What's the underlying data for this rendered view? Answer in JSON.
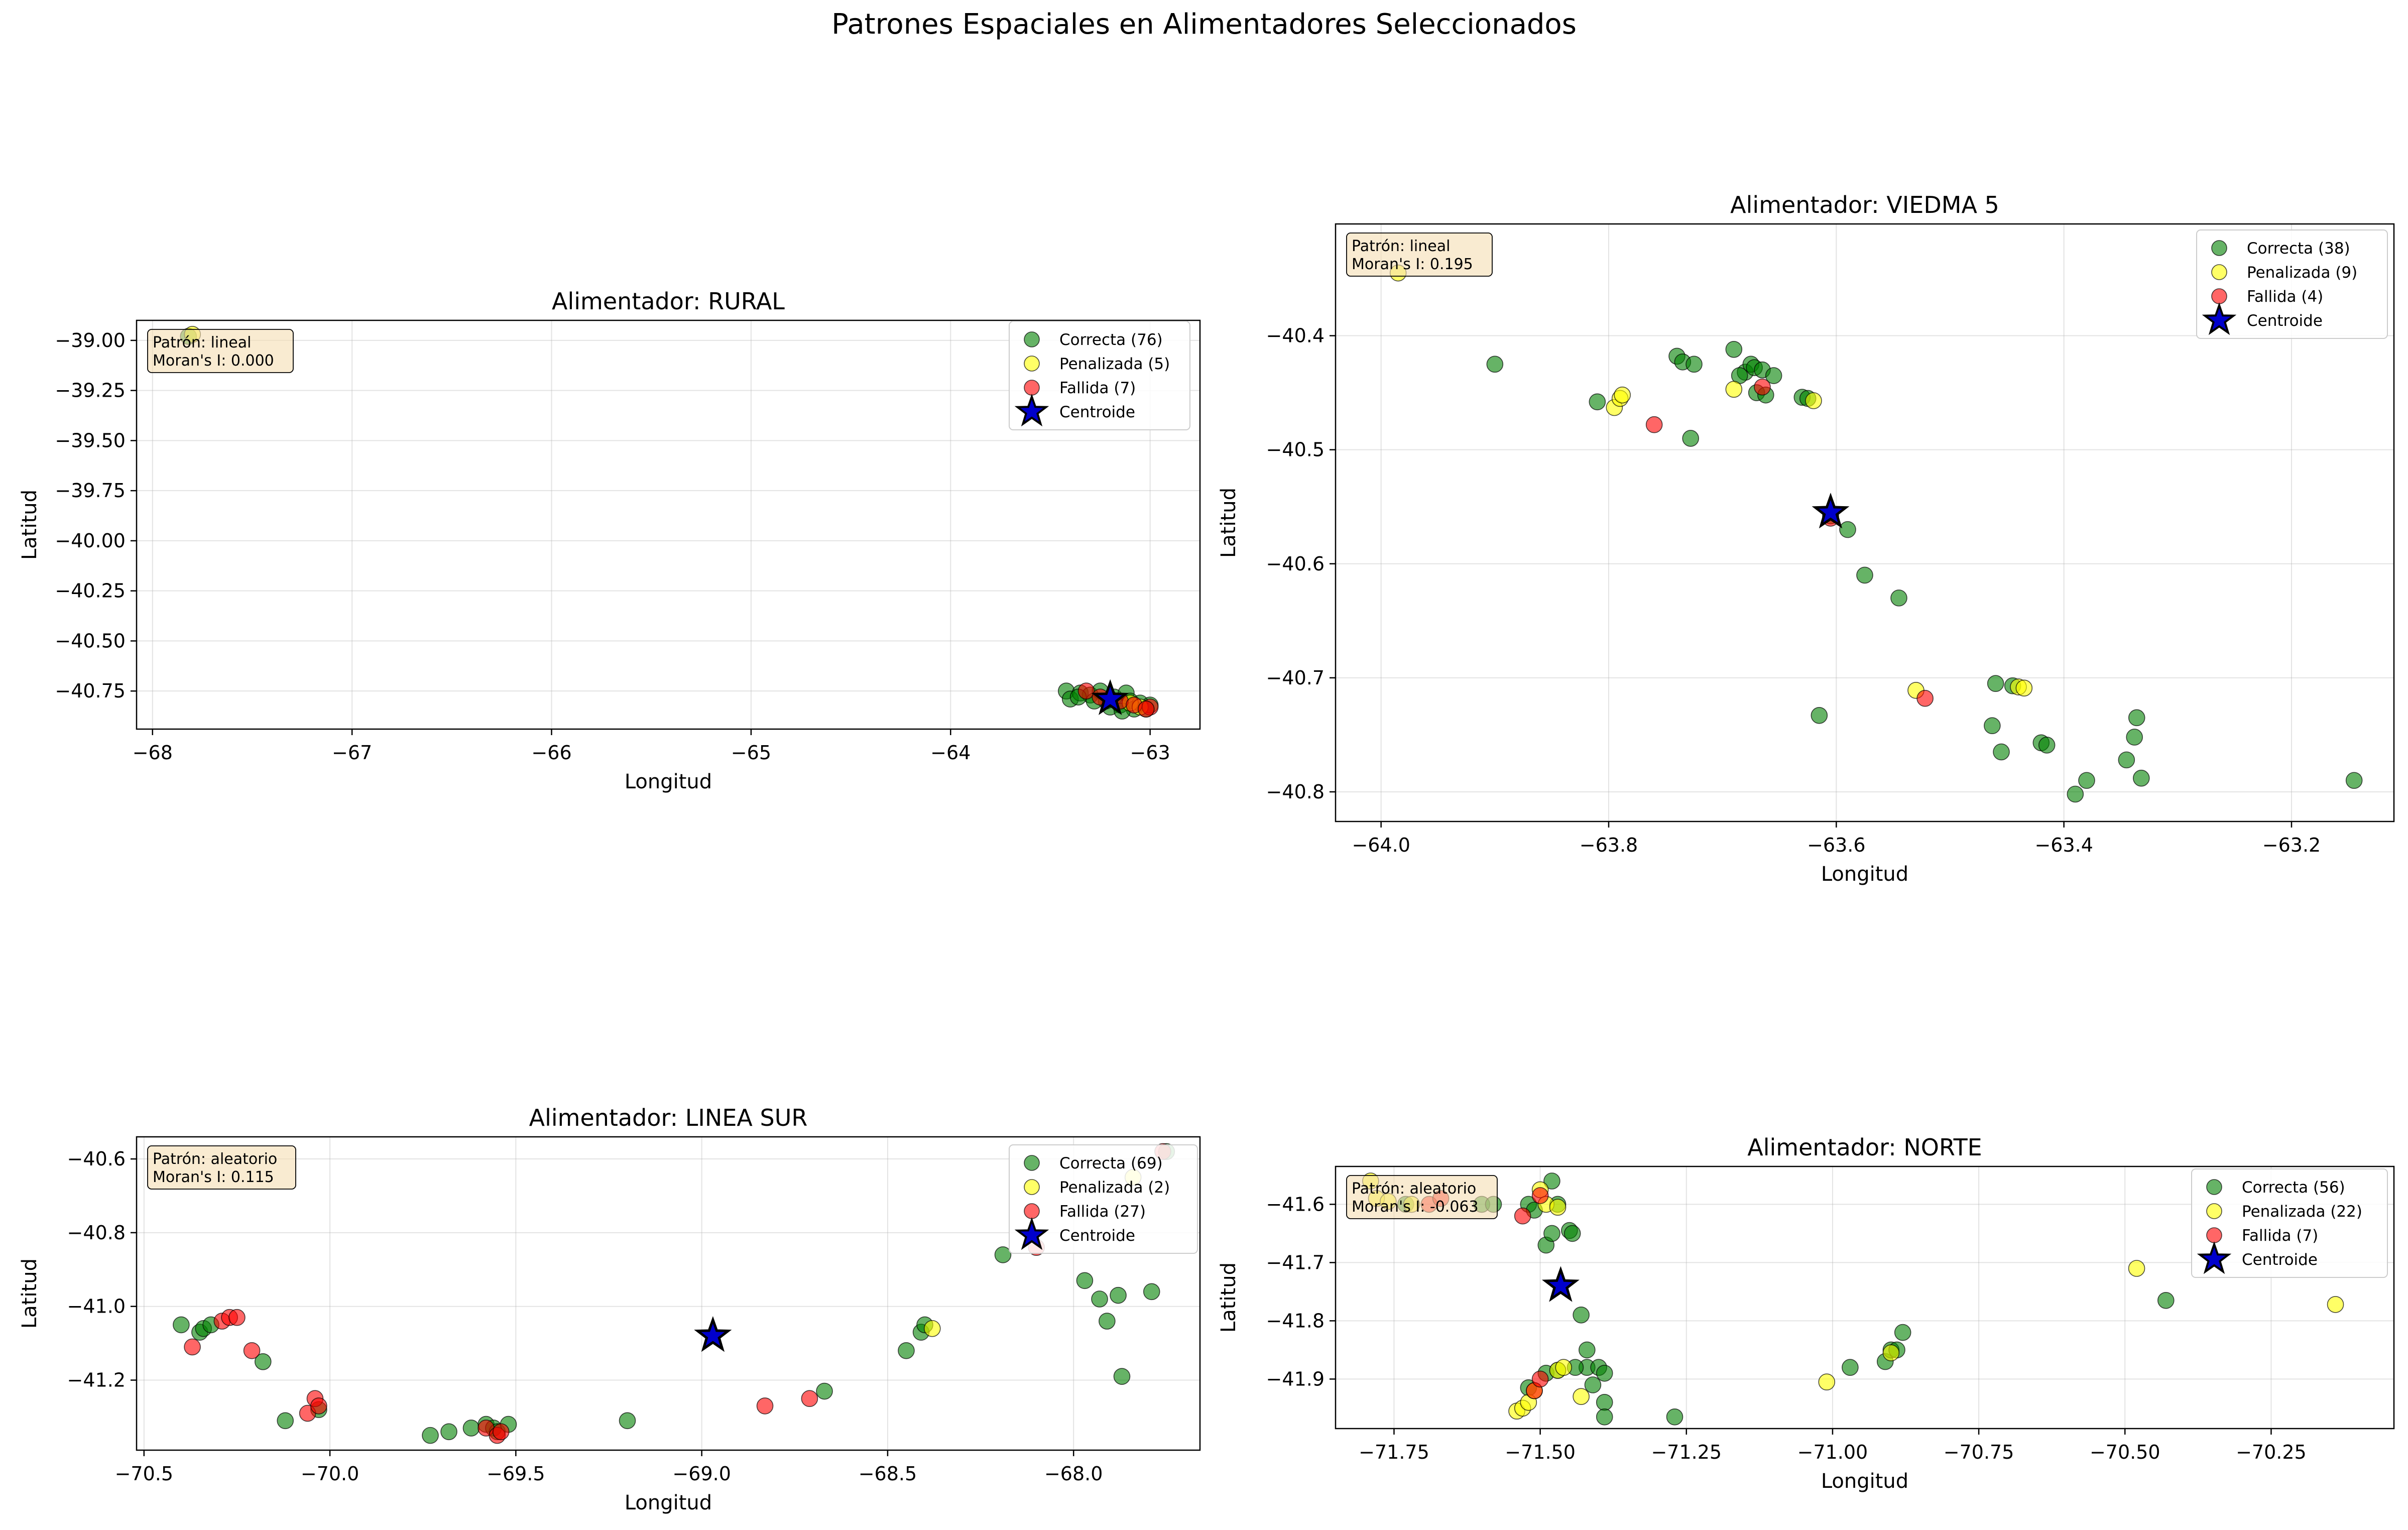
{
  "suptitle": "Patrones Espaciales en Alimentadores Seleccionados",
  "colors": {
    "correcta": "#008000",
    "penalizada": "#ffff00",
    "fallida": "#ff0000",
    "centroide": "#0000cc"
  },
  "chart_data": [
    {
      "type": "scatter",
      "title": "Alimentador: RURAL",
      "xlabel": "Longitud",
      "ylabel": "Latitud",
      "xlim": [
        -68.08,
        -62.75
      ],
      "ylim": [
        -40.94,
        -38.9
      ],
      "xticks": [
        -68,
        -67,
        -66,
        -65,
        -64,
        -63
      ],
      "yticks": [
        -39.0,
        -39.25,
        -39.5,
        -39.75,
        -40.0,
        -40.25,
        -40.5,
        -40.75
      ],
      "xtick_labels": [
        "−68",
        "−67",
        "−66",
        "−65",
        "−64",
        "−63"
      ],
      "ytick_labels": [
        "−39.00",
        "−39.25",
        "−39.50",
        "−39.75",
        "−40.00",
        "−40.25",
        "−40.50",
        "−40.75"
      ],
      "grid": true,
      "legend_position": "top-right",
      "annotation": {
        "patron": "Patrón: lineal",
        "moran": "Moran's I: 0.000"
      },
      "series": [
        {
          "name": "Correcta (76)",
          "color": "#008000",
          "points": [
            [
              -67.82,
              -38.98
            ],
            [
              -63.42,
              -40.75
            ],
            [
              -63.4,
              -40.79
            ],
            [
              -63.35,
              -40.76
            ],
            [
              -63.3,
              -40.77
            ],
            [
              -63.25,
              -40.75
            ],
            [
              -63.22,
              -40.8
            ],
            [
              -63.18,
              -40.78
            ],
            [
              -63.15,
              -40.82
            ],
            [
              -63.12,
              -40.76
            ],
            [
              -63.1,
              -40.8
            ],
            [
              -63.08,
              -40.84
            ],
            [
              -63.05,
              -40.81
            ],
            [
              -63.02,
              -40.84
            ],
            [
              -63.2,
              -40.83
            ],
            [
              -63.28,
              -40.8
            ],
            [
              -63.36,
              -40.78
            ],
            [
              -63.0,
              -40.82
            ],
            [
              -63.14,
              -40.85
            ]
          ]
        },
        {
          "name": "Penalizada (5)",
          "color": "#ffff00",
          "points": [
            [
              -67.8,
              -38.97
            ],
            [
              -63.2,
              -40.79
            ],
            [
              -63.1,
              -40.81
            ],
            [
              -63.05,
              -40.83
            ]
          ]
        },
        {
          "name": "Fallida (7)",
          "color": "#ff0000",
          "points": [
            [
              -63.32,
              -40.75
            ],
            [
              -63.25,
              -40.78
            ],
            [
              -63.15,
              -40.8
            ],
            [
              -63.08,
              -40.82
            ],
            [
              -63.0,
              -40.83
            ],
            [
              -63.02,
              -40.84
            ]
          ]
        },
        {
          "name": "Centroide",
          "color": "#0000cc",
          "marker": "star",
          "points": [
            [
              -63.2,
              -40.79
            ]
          ]
        }
      ]
    },
    {
      "type": "scatter",
      "title": "Alimentador: VIEDMA 5",
      "xlabel": "Longitud",
      "ylabel": "Latitud",
      "xlim": [
        -64.04,
        -63.11
      ],
      "ylim": [
        -40.826,
        -40.302
      ],
      "xticks": [
        -64.0,
        -63.8,
        -63.6,
        -63.4,
        -63.2
      ],
      "yticks": [
        -40.4,
        -40.5,
        -40.6,
        -40.7,
        -40.8
      ],
      "xtick_labels": [
        "−64.0",
        "−63.8",
        "−63.6",
        "−63.4",
        "−63.2"
      ],
      "ytick_labels": [
        "−40.4",
        "−40.5",
        "−40.6",
        "−40.7",
        "−40.8"
      ],
      "grid": true,
      "legend_position": "top-right",
      "annotation": {
        "patron": "Patrón: lineal",
        "moran": "Moran's I: 0.195"
      },
      "series": [
        {
          "name": "Correcta (38)",
          "color": "#008000",
          "points": [
            [
              -63.9,
              -40.425
            ],
            [
              -63.81,
              -40.458
            ],
            [
              -63.74,
              -40.418
            ],
            [
              -63.735,
              -40.423
            ],
            [
              -63.725,
              -40.425
            ],
            [
              -63.728,
              -40.49
            ],
            [
              -63.69,
              -40.412
            ],
            [
              -63.68,
              -40.432
            ],
            [
              -63.675,
              -40.425
            ],
            [
              -63.672,
              -40.428
            ],
            [
              -63.67,
              -40.45
            ],
            [
              -63.665,
              -40.43
            ],
            [
              -63.662,
              -40.452
            ],
            [
              -63.655,
              -40.435
            ],
            [
              -63.63,
              -40.454
            ],
            [
              -63.625,
              -40.455
            ],
            [
              -63.605,
              -40.558
            ],
            [
              -63.59,
              -40.57
            ],
            [
              -63.575,
              -40.61
            ],
            [
              -63.545,
              -40.63
            ],
            [
              -63.615,
              -40.733
            ],
            [
              -63.46,
              -40.705
            ],
            [
              -63.463,
              -40.742
            ],
            [
              -63.455,
              -40.765
            ],
            [
              -63.445,
              -40.707
            ],
            [
              -63.42,
              -40.757
            ],
            [
              -63.415,
              -40.759
            ],
            [
              -63.39,
              -40.802
            ],
            [
              -63.38,
              -40.79
            ],
            [
              -63.345,
              -40.772
            ],
            [
              -63.338,
              -40.752
            ],
            [
              -63.336,
              -40.735
            ],
            [
              -63.332,
              -40.788
            ],
            [
              -63.145,
              -40.79
            ],
            [
              -63.685,
              -40.435
            ]
          ]
        },
        {
          "name": "Penalizada (9)",
          "color": "#ffff00",
          "points": [
            [
              -63.985,
              -40.345
            ],
            [
              -63.795,
              -40.463
            ],
            [
              -63.79,
              -40.455
            ],
            [
              -63.788,
              -40.452
            ],
            [
              -63.69,
              -40.447
            ],
            [
              -63.62,
              -40.457
            ],
            [
              -63.53,
              -40.711
            ],
            [
              -63.44,
              -40.708
            ],
            [
              -63.435,
              -40.709
            ]
          ]
        },
        {
          "name": "Fallida (4)",
          "color": "#ff0000",
          "points": [
            [
              -63.76,
              -40.478
            ],
            [
              -63.665,
              -40.445
            ],
            [
              -63.522,
              -40.718
            ],
            [
              -63.605,
              -40.56
            ]
          ]
        },
        {
          "name": "Centroide",
          "color": "#0000cc",
          "marker": "star",
          "points": [
            [
              -63.605,
              -40.555
            ]
          ]
        }
      ]
    },
    {
      "type": "scatter",
      "title": "Alimentador: LINEA SUR",
      "xlabel": "Longitud",
      "ylabel": "Latitud",
      "xlim": [
        -70.52,
        -67.66
      ],
      "ylim": [
        -41.39,
        -40.54
      ],
      "xticks": [
        -70.5,
        -70.0,
        -69.5,
        -69.0,
        -68.5,
        -68.0
      ],
      "yticks": [
        -40.6,
        -40.8,
        -41.0,
        -41.2
      ],
      "xtick_labels": [
        "−70.5",
        "−70.0",
        "−69.5",
        "−69.0",
        "−68.5",
        "−68.0"
      ],
      "ytick_labels": [
        "−40.6",
        "−40.8",
        "−41.0",
        "−41.2"
      ],
      "grid": true,
      "legend_position": "top-right",
      "annotation": {
        "patron": "Patrón: aleatorio",
        "moran": "Moran's I: 0.115"
      },
      "series": [
        {
          "name": "Correcta (69)",
          "color": "#008000",
          "points": [
            [
              -70.4,
              -41.05
            ],
            [
              -70.35,
              -41.07
            ],
            [
              -70.34,
              -41.06
            ],
            [
              -70.32,
              -41.05
            ],
            [
              -70.18,
              -41.15
            ],
            [
              -70.12,
              -41.31
            ],
            [
              -70.03,
              -41.28
            ],
            [
              -69.73,
              -41.35
            ],
            [
              -69.68,
              -41.34
            ],
            [
              -69.62,
              -41.33
            ],
            [
              -69.58,
              -41.32
            ],
            [
              -69.56,
              -41.33
            ],
            [
              -69.55,
              -41.34
            ],
            [
              -69.52,
              -41.32
            ],
            [
              -69.2,
              -41.31
            ],
            [
              -68.67,
              -41.23
            ],
            [
              -68.45,
              -41.12
            ],
            [
              -68.41,
              -41.07
            ],
            [
              -68.4,
              -41.05
            ],
            [
              -68.19,
              -40.86
            ],
            [
              -67.97,
              -40.93
            ],
            [
              -67.93,
              -40.98
            ],
            [
              -67.91,
              -41.04
            ],
            [
              -67.88,
              -40.97
            ],
            [
              -67.87,
              -41.19
            ],
            [
              -67.79,
              -40.96
            ],
            [
              -67.75,
              -40.58
            ]
          ]
        },
        {
          "name": "Penalizada (2)",
          "color": "#ffff00",
          "points": [
            [
              -68.38,
              -41.06
            ],
            [
              -67.84,
              -40.65
            ]
          ]
        },
        {
          "name": "Fallida (27)",
          "color": "#ff0000",
          "points": [
            [
              -70.37,
              -41.11
            ],
            [
              -70.29,
              -41.04
            ],
            [
              -70.27,
              -41.03
            ],
            [
              -70.25,
              -41.03
            ],
            [
              -70.21,
              -41.12
            ],
            [
              -70.06,
              -41.29
            ],
            [
              -70.04,
              -41.25
            ],
            [
              -70.03,
              -41.27
            ],
            [
              -69.58,
              -41.33
            ],
            [
              -69.55,
              -41.35
            ],
            [
              -69.54,
              -41.34
            ],
            [
              -68.83,
              -41.27
            ],
            [
              -68.71,
              -41.25
            ],
            [
              -68.1,
              -40.84
            ],
            [
              -67.76,
              -40.58
            ]
          ]
        },
        {
          "name": "Centroide",
          "color": "#0000cc",
          "marker": "star",
          "points": [
            [
              -68.97,
              -41.08
            ]
          ]
        }
      ]
    },
    {
      "type": "scatter",
      "title": "Alimentador: NORTE",
      "xlabel": "Longitud",
      "ylabel": "Latitud",
      "xlim": [
        -71.85,
        -70.04
      ],
      "ylim": [
        -41.985,
        -41.535
      ],
      "xticks": [
        -71.75,
        -71.5,
        -71.25,
        -71.0,
        -70.75,
        -70.5,
        -70.25
      ],
      "yticks": [
        -41.6,
        -41.7,
        -41.8,
        -41.9
      ],
      "xtick_labels": [
        "−71.75",
        "−71.50",
        "−71.25",
        "−71.00",
        "−70.75",
        "−70.50",
        "−70.25"
      ],
      "ytick_labels": [
        "−41.6",
        "−41.7",
        "−41.8",
        "−41.9"
      ],
      "grid": true,
      "legend_position": "top-right",
      "annotation": {
        "patron": "Patrón: aleatorio",
        "moran": "Moran's I: -0.063"
      },
      "series": [
        {
          "name": "Correcta (56)",
          "color": "#008000",
          "points": [
            [
              -71.73,
              -41.6
            ],
            [
              -71.6,
              -41.6
            ],
            [
              -71.58,
              -41.6
            ],
            [
              -71.52,
              -41.6
            ],
            [
              -71.51,
              -41.61
            ],
            [
              -71.49,
              -41.67
            ],
            [
              -71.48,
              -41.65
            ],
            [
              -71.48,
              -41.56
            ],
            [
              -71.47,
              -41.6
            ],
            [
              -71.45,
              -41.645
            ],
            [
              -71.445,
              -41.65
            ],
            [
              -71.43,
              -41.79
            ],
            [
              -71.42,
              -41.85
            ],
            [
              -71.42,
              -41.88
            ],
            [
              -71.41,
              -41.91
            ],
            [
              -71.4,
              -41.88
            ],
            [
              -71.39,
              -41.89
            ],
            [
              -71.39,
              -41.94
            ],
            [
              -71.39,
              -41.965
            ],
            [
              -71.27,
              -41.965
            ],
            [
              -71.52,
              -41.915
            ],
            [
              -71.49,
              -41.89
            ],
            [
              -71.47,
              -41.885
            ],
            [
              -71.44,
              -41.88
            ],
            [
              -70.97,
              -41.88
            ],
            [
              -70.91,
              -41.87
            ],
            [
              -70.9,
              -41.85
            ],
            [
              -70.89,
              -41.85
            ],
            [
              -70.88,
              -41.82
            ],
            [
              -70.43,
              -41.765
            ]
          ]
        },
        {
          "name": "Penalizada (22)",
          "color": "#ffff00",
          "points": [
            [
              -71.79,
              -41.56
            ],
            [
              -71.78,
              -41.59
            ],
            [
              -71.76,
              -41.595
            ],
            [
              -71.72,
              -41.6
            ],
            [
              -71.5,
              -41.575
            ],
            [
              -71.49,
              -41.6
            ],
            [
              -71.47,
              -41.605
            ],
            [
              -71.54,
              -41.955
            ],
            [
              -71.53,
              -41.95
            ],
            [
              -71.52,
              -41.94
            ],
            [
              -71.51,
              -41.92
            ],
            [
              -71.47,
              -41.885
            ],
            [
              -71.46,
              -41.88
            ],
            [
              -71.43,
              -41.93
            ],
            [
              -71.01,
              -41.905
            ],
            [
              -70.9,
              -41.855
            ],
            [
              -70.48,
              -41.71
            ],
            [
              -70.14,
              -41.772
            ]
          ]
        },
        {
          "name": "Fallida (7)",
          "color": "#ff0000",
          "points": [
            [
              -71.69,
              -41.6
            ],
            [
              -71.67,
              -41.59
            ],
            [
              -71.53,
              -41.62
            ],
            [
              -71.5,
              -41.585
            ],
            [
              -71.51,
              -41.92
            ],
            [
              -71.5,
              -41.9
            ]
          ]
        },
        {
          "name": "Centroide",
          "color": "#0000cc",
          "marker": "star",
          "points": [
            [
              -71.465,
              -41.74
            ]
          ]
        }
      ]
    }
  ]
}
